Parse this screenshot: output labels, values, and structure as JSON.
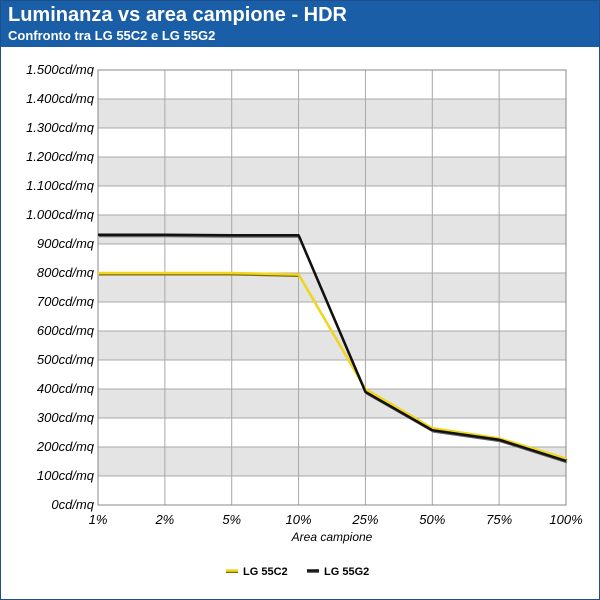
{
  "header": {
    "title": "Luminanza vs area campione - HDR",
    "subtitle": "Confronto tra LG 55C2 e LG 55G2",
    "background_color": "#1a5ea8"
  },
  "chart_data": {
    "type": "line",
    "x": [
      "1%",
      "2%",
      "5%",
      "10%",
      "25%",
      "50%",
      "75%",
      "100%"
    ],
    "xlabel": "Area campione",
    "ylabel": "",
    "ylim": [
      0,
      1500
    ],
    "y_tick_labels": [
      "0cd/mq",
      "100cd/mq",
      "200cd/mq",
      "300cd/mq",
      "400cd/mq",
      "500cd/mq",
      "600cd/mq",
      "700cd/mq",
      "800cd/mq",
      "900cd/mq",
      "1.000cd/mq",
      "1.100cd/mq",
      "1.200cd/mq",
      "1.300cd/mq",
      "1.400cd/mq",
      "1.500cd/mq"
    ],
    "grid": true,
    "legend_position": "bottom-center",
    "series": [
      {
        "name": "LG 55C2",
        "color": "#f2d61c",
        "values": [
          800,
          800,
          800,
          795,
          400,
          265,
          230,
          160
        ]
      },
      {
        "name": "LG 55G2",
        "color": "#111111",
        "values": [
          932,
          932,
          930,
          930,
          390,
          258,
          225,
          152
        ]
      }
    ]
  }
}
